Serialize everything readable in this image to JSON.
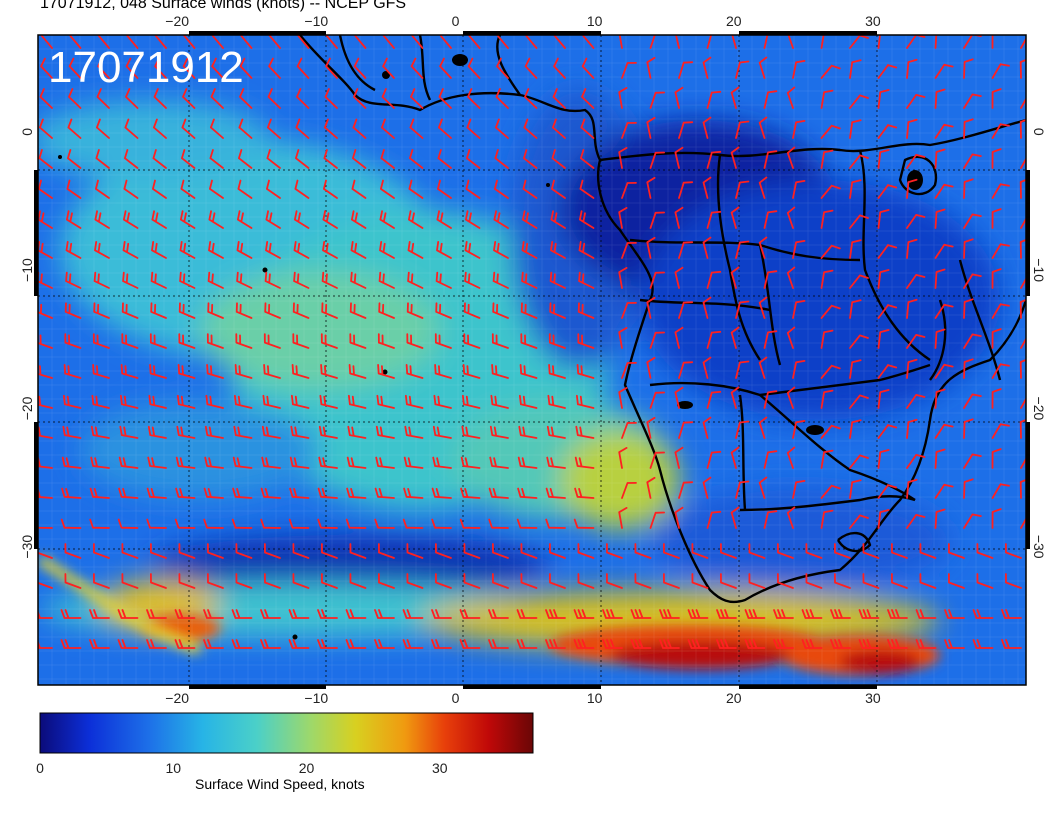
{
  "header": {
    "title": "17071912, 048 Surface winds (knots) -- NCEP GFS",
    "datetime_stamp": "17071912"
  },
  "map": {
    "projection": "cylindrical",
    "lon_range": [
      -30,
      41
    ],
    "lat_range": [
      -40,
      7
    ],
    "lon_ticks": [
      {
        "value": -20,
        "label": "−20"
      },
      {
        "value": -10,
        "label": "−10"
      },
      {
        "value": 0,
        "label": "0"
      },
      {
        "value": 10,
        "label": "10"
      },
      {
        "value": 20,
        "label": "20"
      },
      {
        "value": 30,
        "label": "30"
      }
    ],
    "lat_ticks": [
      {
        "value": 0,
        "label": "0"
      },
      {
        "value": -10,
        "label": "−10"
      },
      {
        "value": -20,
        "label": "−20"
      },
      {
        "value": -30,
        "label": "−30"
      }
    ],
    "grid": true,
    "barb_color": "#ff2020",
    "coast_color": "#000000"
  },
  "colorbar": {
    "label": "Surface Wind Speed, knots",
    "range": [
      0,
      37
    ],
    "ticks": [
      {
        "value": 0,
        "label": "0"
      },
      {
        "value": 10,
        "label": "10"
      },
      {
        "value": 20,
        "label": "20"
      },
      {
        "value": 30,
        "label": "30"
      }
    ],
    "colors": [
      "#0b0b7a",
      "#0c2fd8",
      "#1d6fe8",
      "#27b4e6",
      "#4bd0c8",
      "#9ed86a",
      "#d8d020",
      "#f09a10",
      "#e8400a",
      "#c00808",
      "#6a0606"
    ]
  }
}
